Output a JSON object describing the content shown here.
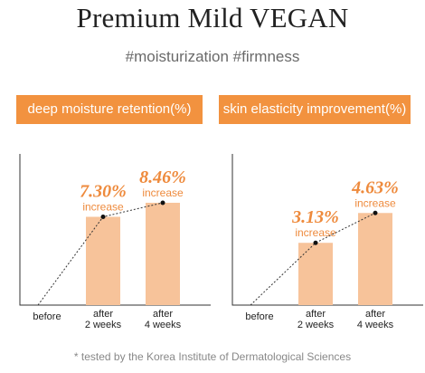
{
  "title": "Premium Mild VEGAN",
  "subtitle": "#moisturization #firmness",
  "footnote": "* tested by the Korea Institute of Dermatological Sciences",
  "colors": {
    "accent": "#f2923f",
    "bar": "#f7c39a",
    "value_text": "#ee8a3c"
  },
  "chart_data": [
    {
      "type": "bar",
      "title": "deep moisture retention(%)",
      "categories": [
        [
          "before"
        ],
        [
          "after",
          "2 weeks"
        ],
        [
          "after",
          "4 weeks"
        ]
      ],
      "values": [
        0,
        7.3,
        8.46
      ],
      "value_labels": [
        "",
        "7.30%",
        "8.46%"
      ],
      "annotation": "increase",
      "ylim": [
        0,
        12.5
      ],
      "trend_line": true,
      "grid": false
    },
    {
      "type": "bar",
      "title": "skin elasticity improvement(%)",
      "categories": [
        [
          "before"
        ],
        [
          "after",
          "2 weeks"
        ],
        [
          "after",
          "4 weeks"
        ]
      ],
      "values": [
        0,
        3.13,
        4.63
      ],
      "value_labels": [
        "",
        "3.13%",
        "4.63%"
      ],
      "annotation": "increase",
      "ylim": [
        0,
        7.6
      ],
      "trend_line": true,
      "grid": false
    }
  ]
}
